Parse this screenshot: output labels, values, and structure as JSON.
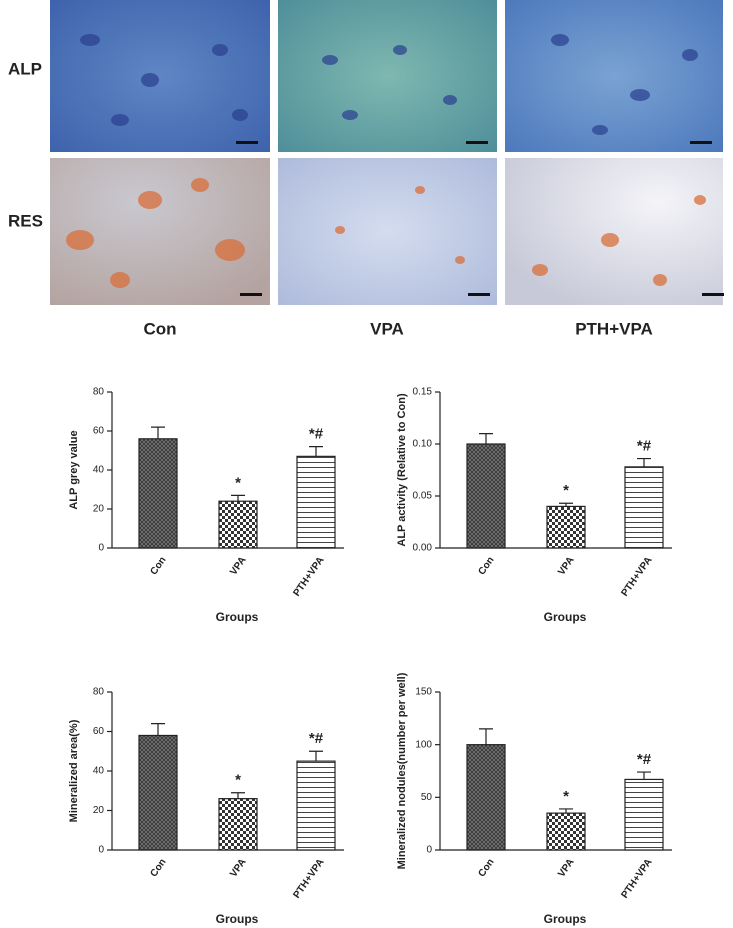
{
  "figure": {
    "row_labels": [
      "ALP",
      "RES"
    ],
    "column_labels": [
      "Con",
      "VPA",
      "PTH+VPA"
    ]
  },
  "chart_data": [
    {
      "type": "bar",
      "y_label": "ALP grey value",
      "x_label": "Groups",
      "categories": [
        "Con",
        "VPA",
        "PTH+VPA"
      ],
      "values": [
        56,
        24,
        47
      ],
      "errors": [
        6,
        3,
        5
      ],
      "annotations": [
        null,
        "*",
        "*#"
      ],
      "ylim": [
        0,
        80
      ],
      "yticks": [
        0,
        20,
        40,
        60,
        80
      ]
    },
    {
      "type": "bar",
      "y_label": "ALP activity (Relative to Con)",
      "x_label": "Groups",
      "categories": [
        "Con",
        "VPA",
        "PTH+VPA"
      ],
      "values": [
        0.1,
        0.04,
        0.078
      ],
      "errors": [
        0.01,
        0.003,
        0.008
      ],
      "annotations": [
        null,
        "*",
        "*#"
      ],
      "ylim": [
        0,
        0.15
      ],
      "yticks": [
        {
          "value": 0,
          "label": "0.00"
        },
        0.05,
        {
          "value": 0.1,
          "label": "0.10"
        },
        0.15
      ]
    },
    {
      "type": "bar",
      "y_label": "Mineralized area(%)",
      "x_label": "Groups",
      "categories": [
        "Con",
        "VPA",
        "PTH+VPA"
      ],
      "values": [
        58,
        26,
        45
      ],
      "errors": [
        6,
        3,
        5
      ],
      "annotations": [
        null,
        "*",
        "*#"
      ],
      "ylim": [
        0,
        80
      ],
      "yticks": [
        0,
        20,
        40,
        60,
        80
      ]
    },
    {
      "type": "bar",
      "y_label": "Mineralized nodules(number per well)",
      "x_label": "Groups",
      "categories": [
        "Con",
        "VPA",
        "PTH+VPA"
      ],
      "values": [
        100,
        35,
        67
      ],
      "errors": [
        15,
        4,
        7
      ],
      "annotations": [
        null,
        "*",
        "*#"
      ],
      "ylim": [
        0,
        150
      ],
      "yticks": [
        0,
        50,
        100,
        150
      ]
    }
  ]
}
